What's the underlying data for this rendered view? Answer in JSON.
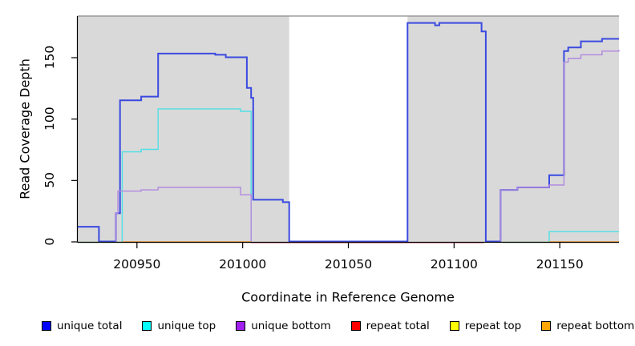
{
  "figure": {
    "background": "#ffffff"
  },
  "chart_data": {
    "type": "line",
    "subtype": "step-coverage",
    "title": "",
    "xlabel": "Coordinate in Reference Genome",
    "ylabel": "Read Coverage Depth",
    "xlim": [
      200922,
      201178
    ],
    "ylim": [
      0,
      184
    ],
    "x_ticks": [
      200950,
      201000,
      201050,
      201100,
      201150
    ],
    "y_ticks": [
      0,
      50,
      100,
      150
    ],
    "grid": false,
    "shade_color": "#d9d9d9",
    "shaded_regions": [
      [
        200922,
        201022
      ],
      [
        201078,
        201178
      ]
    ],
    "uncovered_gap": [
      201022,
      201078
    ],
    "legend_position": "bottom",
    "legend": [
      {
        "label": "unique total",
        "color": "#0000FF"
      },
      {
        "label": "unique top",
        "color": "#00FFFF"
      },
      {
        "label": "unique bottom",
        "color": "#A020F0"
      },
      {
        "label": "repeat total",
        "color": "#FF0000"
      },
      {
        "label": "repeat top",
        "color": "#FFFF00"
      },
      {
        "label": "repeat bottom",
        "color": "#FFA500"
      }
    ],
    "series": [
      {
        "name": "repeat total",
        "line_color": "#e4647e",
        "line_width": 1.4,
        "segments": [
          [
            [
              201004,
              0
            ],
            [
              201114,
              0
            ]
          ]
        ]
      },
      {
        "name": "repeat top",
        "line_color": "#8fd88f",
        "line_width": 1.4,
        "segments": [
          [
            [
              200922,
              0
            ],
            [
              200943,
              0
            ]
          ],
          [
            [
              201123,
              0
            ],
            [
              201145,
              0
            ]
          ]
        ]
      },
      {
        "name": "repeat bottom",
        "line_color": "#ff9d26",
        "line_width": 2,
        "segments": [
          [
            [
              200943,
              0
            ],
            [
              201004,
              0
            ]
          ],
          [
            [
              201145,
              0
            ],
            [
              201178,
              0
            ]
          ]
        ]
      },
      {
        "name": "unique total",
        "line_color": "#3a4ae0",
        "line_width": 2,
        "segments": [
          [
            [
              200922,
              12
            ],
            [
              200932,
              0
            ],
            [
              200940,
              23
            ],
            [
              200942,
              115
            ],
            [
              200952,
              118
            ],
            [
              200960,
              153
            ],
            [
              200987,
              152
            ],
            [
              200992,
              150
            ],
            [
              201002,
              125
            ],
            [
              201004,
              117
            ],
            [
              201005,
              34
            ],
            [
              201019,
              32
            ],
            [
              201022,
              0
            ],
            [
              201078,
              178
            ],
            [
              201091,
              176
            ],
            [
              201093,
              178
            ],
            [
              201113,
              171
            ],
            [
              201115,
              0
            ],
            [
              201122,
              42
            ],
            [
              201130,
              44
            ],
            [
              201145,
              54
            ],
            [
              201152,
              155
            ],
            [
              201154,
              158
            ],
            [
              201160,
              163
            ],
            [
              201170,
              165
            ],
            [
              201178,
              165
            ]
          ]
        ]
      },
      {
        "name": "unique top",
        "line_color": "#4fe0e6",
        "line_width": 1.4,
        "segments": [
          [
            [
              200943,
              0
            ],
            [
              200943,
              73
            ],
            [
              200952,
              75
            ],
            [
              200960,
              108
            ],
            [
              200999,
              106
            ],
            [
              201004,
              0
            ]
          ],
          [
            [
              201145,
              0
            ],
            [
              201145,
              8
            ],
            [
              201178,
              8
            ]
          ]
        ]
      },
      {
        "name": "unique bottom",
        "line_color": "#b188e0",
        "line_width": 1.4,
        "segments": [
          [
            [
              200940,
              0
            ],
            [
              200940,
              23
            ],
            [
              200941,
              41
            ],
            [
              200952,
              42
            ],
            [
              200960,
              44
            ],
            [
              200999,
              38
            ],
            [
              201004,
              0
            ]
          ],
          [
            [
              201122,
              0
            ],
            [
              201122,
              42
            ],
            [
              201130,
              44
            ],
            [
              201145,
              46
            ],
            [
              201152,
              146
            ],
            [
              201154,
              149
            ],
            [
              201160,
              152
            ],
            [
              201170,
              155
            ],
            [
              201178,
              156
            ]
          ]
        ]
      }
    ]
  }
}
